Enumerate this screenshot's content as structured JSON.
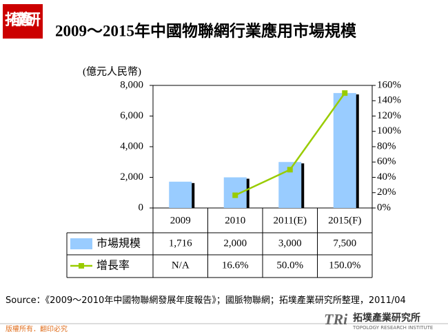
{
  "page": {
    "logo": "拓墣產研",
    "footer": "版權所有．翻印必究",
    "brand_mark": "TRi",
    "brand_name": "拓墣產業研究所",
    "brand_sub": "TOPOLOGY RESEARCH INSTITUTE"
  },
  "chart_data": {
    "type": "bar_line",
    "title": "2009～2015年中國物聯網行業應用市場規模",
    "y_label": "(億元人民幣)",
    "categories": [
      "2009",
      "2010",
      "2011(E)",
      "2015(F)"
    ],
    "series": [
      {
        "name": "市場規模",
        "color": "#99ccff",
        "type": "bar",
        "values": [
          1716,
          2000,
          3000,
          7500
        ],
        "value_labels": [
          "1,716",
          "2,000",
          "3,000",
          "7,500"
        ]
      },
      {
        "name": "增長率",
        "color": "#99cc00",
        "type": "line",
        "axis": "y2",
        "values": [
          null,
          16.6,
          50,
          150
        ],
        "value_labels": [
          "N/A",
          "16.6%",
          "50.0%",
          "150.0%"
        ]
      }
    ],
    "ylim": [
      0,
      8000
    ],
    "yticks": [
      0,
      {
        "value": 2000,
        "label": "2,000"
      },
      {
        "value": 4000,
        "label": "4,000"
      },
      {
        "value": 6000,
        "label": "6,000"
      },
      {
        "value": 8000,
        "label": "8,000"
      }
    ],
    "y2lim": [
      0,
      160
    ],
    "y2ticks": [
      {
        "value": 0,
        "label": "0%"
      },
      {
        "value": 20,
        "label": "20%"
      },
      {
        "value": 40,
        "label": "40%"
      },
      {
        "value": 60,
        "label": "60%"
      },
      {
        "value": 80,
        "label": "80%"
      },
      {
        "value": 100,
        "label": "100%"
      },
      {
        "value": 120,
        "label": "120%"
      },
      {
        "value": 140,
        "label": "140%"
      },
      {
        "value": 160,
        "label": "160%"
      }
    ],
    "source": "Source：《2009～2010年中國物聯網發展年度報告》；國脈物聯網；拓墣產業研究所整理，2011/04"
  }
}
